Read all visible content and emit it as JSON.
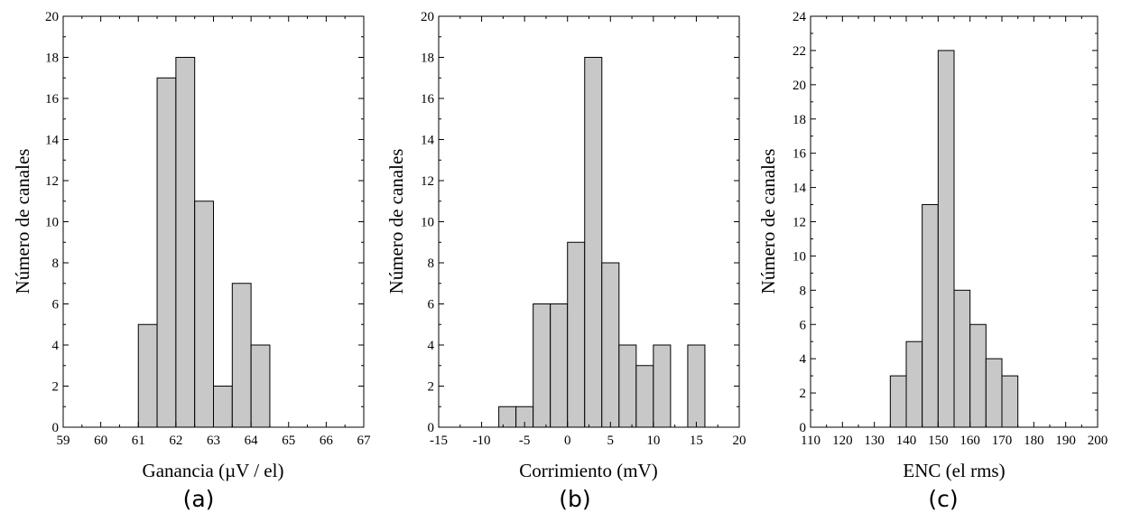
{
  "chart_data": [
    {
      "type": "bar",
      "panel_label": "(a)",
      "xlabel": "Ganancia  (µV / el)",
      "ylabel": "Número de canales",
      "xlim": [
        59,
        67
      ],
      "ylim": [
        0,
        20
      ],
      "x_major_ticks": [
        59,
        60,
        61,
        62,
        63,
        64,
        65,
        66,
        67
      ],
      "x_tick_labels": [
        "59",
        "60",
        "61",
        "62",
        "63",
        "64",
        "65",
        "66",
        "67"
      ],
      "y_major_ticks": [
        0,
        2,
        4,
        6,
        8,
        10,
        12,
        14,
        16,
        18,
        20
      ],
      "y_tick_labels": [
        "0",
        "2",
        "4",
        "6",
        "8",
        "10",
        "12",
        "14",
        "16",
        "18",
        "20"
      ],
      "bin_width": 0.5,
      "bins": [
        {
          "start": 61.0,
          "end": 61.5,
          "count": 5
        },
        {
          "start": 61.5,
          "end": 62.0,
          "count": 17
        },
        {
          "start": 62.0,
          "end": 62.5,
          "count": 18
        },
        {
          "start": 62.5,
          "end": 63.0,
          "count": 11
        },
        {
          "start": 63.0,
          "end": 63.5,
          "count": 2
        },
        {
          "start": 63.5,
          "end": 64.0,
          "count": 7
        },
        {
          "start": 64.0,
          "end": 64.5,
          "count": 4
        }
      ],
      "grid": false,
      "bar_color": "#c8c8c8"
    },
    {
      "type": "bar",
      "panel_label": "(b)",
      "xlabel": "Corrimiento  (mV)",
      "ylabel": "Número de canales",
      "xlim": [
        -15,
        20
      ],
      "ylim": [
        0,
        20
      ],
      "x_major_ticks": [
        -15,
        -10,
        -5,
        0,
        5,
        10,
        15,
        20
      ],
      "x_tick_labels": [
        "-15",
        "-10",
        "-5",
        "0",
        "5",
        "10",
        "15",
        "20"
      ],
      "y_major_ticks": [
        0,
        2,
        4,
        6,
        8,
        10,
        12,
        14,
        16,
        18,
        20
      ],
      "y_tick_labels": [
        "0",
        "2",
        "4",
        "6",
        "8",
        "10",
        "12",
        "14",
        "16",
        "18",
        "20"
      ],
      "bin_width": 2,
      "bins": [
        {
          "start": -8,
          "end": -6,
          "count": 1
        },
        {
          "start": -6,
          "end": -4,
          "count": 1
        },
        {
          "start": -4,
          "end": -2,
          "count": 6
        },
        {
          "start": -2,
          "end": 0,
          "count": 6
        },
        {
          "start": 0,
          "end": 2,
          "count": 9
        },
        {
          "start": 2,
          "end": 4,
          "count": 18
        },
        {
          "start": 4,
          "end": 6,
          "count": 8
        },
        {
          "start": 6,
          "end": 8,
          "count": 4
        },
        {
          "start": 8,
          "end": 10,
          "count": 3
        },
        {
          "start": 10,
          "end": 12,
          "count": 4
        },
        {
          "start": 12,
          "end": 14,
          "count": 0
        },
        {
          "start": 14,
          "end": 16,
          "count": 4
        }
      ],
      "grid": false,
      "bar_color": "#c8c8c8"
    },
    {
      "type": "bar",
      "panel_label": "(c)",
      "xlabel": "ENC  (el rms)",
      "ylabel": "Número de canales",
      "xlim": [
        110,
        200
      ],
      "ylim": [
        0,
        24
      ],
      "x_major_ticks": [
        110,
        120,
        130,
        140,
        150,
        160,
        170,
        180,
        190,
        200
      ],
      "x_tick_labels": [
        "110",
        "120",
        "130",
        "140",
        "150",
        "160",
        "170",
        "180",
        "190",
        "200"
      ],
      "y_major_ticks": [
        0,
        2,
        4,
        6,
        8,
        10,
        12,
        14,
        16,
        18,
        20,
        22,
        24
      ],
      "y_tick_labels": [
        "0",
        "2",
        "4",
        "6",
        "8",
        "10",
        "12",
        "14",
        "16",
        "18",
        "20",
        "22",
        "24"
      ],
      "bin_width": 5,
      "bins": [
        {
          "start": 135,
          "end": 140,
          "count": 3
        },
        {
          "start": 140,
          "end": 145,
          "count": 5
        },
        {
          "start": 145,
          "end": 150,
          "count": 13
        },
        {
          "start": 150,
          "end": 155,
          "count": 22
        },
        {
          "start": 155,
          "end": 160,
          "count": 8
        },
        {
          "start": 160,
          "end": 165,
          "count": 6
        },
        {
          "start": 165,
          "end": 170,
          "count": 4
        },
        {
          "start": 170,
          "end": 175,
          "count": 3
        }
      ],
      "grid": false,
      "bar_color": "#c8c8c8"
    }
  ]
}
